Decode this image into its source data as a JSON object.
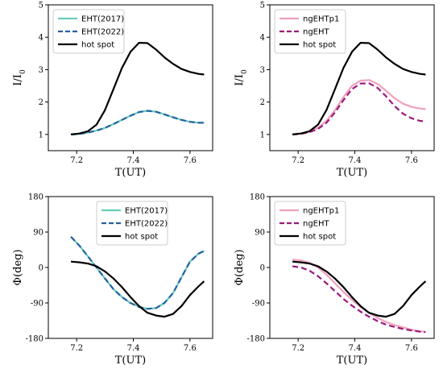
{
  "chart_data": [
    {
      "type": "line",
      "panel": "top-left",
      "xlabel": "T(UT)",
      "ylabel": "I/I",
      "ylabel_sub": "0",
      "xlim": [
        7.1,
        7.68
      ],
      "ylim": [
        0.5,
        5.0
      ],
      "xticks": [
        7.2,
        7.4,
        7.6
      ],
      "yticks": [
        1,
        2,
        3,
        4,
        5
      ],
      "legend_position": "top-left",
      "series": [
        {
          "name": "EHT(2017)",
          "color": "#66ccbb",
          "dash": "solid",
          "x": [
            7.18,
            7.21,
            7.24,
            7.27,
            7.3,
            7.33,
            7.36,
            7.39,
            7.42,
            7.45,
            7.48,
            7.51,
            7.54,
            7.57,
            7.6,
            7.63,
            7.65
          ],
          "y": [
            1.0,
            1.02,
            1.06,
            1.12,
            1.2,
            1.32,
            1.45,
            1.58,
            1.69,
            1.73,
            1.7,
            1.62,
            1.53,
            1.45,
            1.39,
            1.36,
            1.36
          ]
        },
        {
          "name": "EHT(2022)",
          "color": "#2660a4",
          "dash": "dashed",
          "x": [
            7.18,
            7.21,
            7.24,
            7.27,
            7.3,
            7.33,
            7.36,
            7.39,
            7.42,
            7.45,
            7.48,
            7.51,
            7.54,
            7.57,
            7.6,
            7.63,
            7.65
          ],
          "y": [
            1.0,
            1.02,
            1.06,
            1.12,
            1.2,
            1.32,
            1.45,
            1.58,
            1.69,
            1.73,
            1.7,
            1.62,
            1.53,
            1.45,
            1.39,
            1.36,
            1.36
          ]
        },
        {
          "name": "hot spot",
          "color": "#000000",
          "dash": "solid",
          "x": [
            7.18,
            7.21,
            7.24,
            7.27,
            7.3,
            7.33,
            7.36,
            7.39,
            7.42,
            7.45,
            7.48,
            7.51,
            7.54,
            7.57,
            7.6,
            7.63,
            7.65
          ],
          "y": [
            1.0,
            1.03,
            1.1,
            1.3,
            1.75,
            2.4,
            3.05,
            3.55,
            3.83,
            3.82,
            3.62,
            3.38,
            3.18,
            3.02,
            2.93,
            2.87,
            2.85
          ]
        }
      ]
    },
    {
      "type": "line",
      "panel": "top-right",
      "xlabel": "T(UT)",
      "ylabel": "I/I",
      "ylabel_sub": "0",
      "xlim": [
        7.1,
        7.68
      ],
      "ylim": [
        0.5,
        5.0
      ],
      "xticks": [
        7.2,
        7.4,
        7.6
      ],
      "yticks": [
        1,
        2,
        3,
        4,
        5
      ],
      "legend_position": "top-left",
      "series": [
        {
          "name": "ngEHTp1",
          "color": "#f0a0bd",
          "dash": "solid",
          "x": [
            7.18,
            7.21,
            7.24,
            7.27,
            7.3,
            7.33,
            7.36,
            7.39,
            7.42,
            7.45,
            7.48,
            7.51,
            7.54,
            7.57,
            7.6,
            7.63,
            7.65
          ],
          "y": [
            1.0,
            1.03,
            1.08,
            1.2,
            1.42,
            1.75,
            2.15,
            2.5,
            2.66,
            2.68,
            2.56,
            2.35,
            2.12,
            1.95,
            1.85,
            1.8,
            1.78
          ]
        },
        {
          "name": "ngEHT",
          "color": "#9b1a7a",
          "dash": "dashed",
          "x": [
            7.18,
            7.21,
            7.24,
            7.27,
            7.3,
            7.33,
            7.36,
            7.39,
            7.42,
            7.45,
            7.48,
            7.51,
            7.54,
            7.57,
            7.6,
            7.63,
            7.65
          ],
          "y": [
            1.0,
            1.02,
            1.07,
            1.17,
            1.36,
            1.68,
            2.06,
            2.4,
            2.57,
            2.58,
            2.44,
            2.18,
            1.88,
            1.64,
            1.5,
            1.42,
            1.4
          ]
        },
        {
          "name": "hot spot",
          "color": "#000000",
          "dash": "solid",
          "x": [
            7.18,
            7.21,
            7.24,
            7.27,
            7.3,
            7.33,
            7.36,
            7.39,
            7.42,
            7.45,
            7.48,
            7.51,
            7.54,
            7.57,
            7.6,
            7.63,
            7.65
          ],
          "y": [
            1.0,
            1.03,
            1.1,
            1.3,
            1.75,
            2.4,
            3.05,
            3.55,
            3.83,
            3.82,
            3.62,
            3.38,
            3.18,
            3.02,
            2.93,
            2.87,
            2.85
          ]
        }
      ]
    },
    {
      "type": "line",
      "panel": "bottom-left",
      "xlabel": "T(UT)",
      "ylabel": "Φ(deg)",
      "xlim": [
        7.1,
        7.68
      ],
      "ylim": [
        -180,
        180
      ],
      "xticks": [
        7.2,
        7.4,
        7.6
      ],
      "yticks": [
        -180,
        -90,
        0,
        90,
        180
      ],
      "legend_position": "top-center",
      "series": [
        {
          "name": "EHT(2017)",
          "color": "#66ccbb",
          "dash": "solid",
          "x": [
            7.18,
            7.21,
            7.24,
            7.27,
            7.3,
            7.33,
            7.36,
            7.39,
            7.42,
            7.45,
            7.48,
            7.51,
            7.54,
            7.57,
            7.6,
            7.63,
            7.65
          ],
          "y": [
            78,
            55,
            28,
            0,
            -28,
            -55,
            -75,
            -90,
            -100,
            -105,
            -103,
            -90,
            -65,
            -25,
            15,
            35,
            42
          ]
        },
        {
          "name": "EHT(2022)",
          "color": "#2660a4",
          "dash": "dashed",
          "x": [
            7.18,
            7.21,
            7.24,
            7.27,
            7.3,
            7.33,
            7.36,
            7.39,
            7.42,
            7.45,
            7.48,
            7.51,
            7.54,
            7.57,
            7.6,
            7.63,
            7.65
          ],
          "y": [
            78,
            55,
            28,
            0,
            -28,
            -55,
            -75,
            -90,
            -100,
            -105,
            -103,
            -90,
            -65,
            -25,
            15,
            35,
            42
          ]
        },
        {
          "name": "hot spot",
          "color": "#000000",
          "dash": "solid",
          "x": [
            7.18,
            7.21,
            7.24,
            7.27,
            7.3,
            7.33,
            7.36,
            7.39,
            7.42,
            7.45,
            7.48,
            7.51,
            7.54,
            7.57,
            7.6,
            7.63,
            7.65
          ],
          "y": [
            15,
            13,
            10,
            3,
            -10,
            -28,
            -50,
            -75,
            -98,
            -115,
            -122,
            -125,
            -118,
            -98,
            -70,
            -48,
            -35
          ]
        }
      ]
    },
    {
      "type": "line",
      "panel": "bottom-right",
      "xlabel": "T(UT)",
      "ylabel": "Φ(deg)",
      "xlim": [
        7.1,
        7.68
      ],
      "ylim": [
        -180,
        180
      ],
      "xticks": [
        7.2,
        7.4,
        7.6
      ],
      "yticks": [
        -180,
        -90,
        0,
        90,
        180
      ],
      "legend_position": "top-left",
      "series": [
        {
          "name": "ngEHTp1",
          "color": "#f0a0bd",
          "dash": "solid",
          "x": [
            7.18,
            7.21,
            7.24,
            7.27,
            7.3,
            7.33,
            7.36,
            7.39,
            7.42,
            7.45,
            7.48,
            7.51,
            7.54,
            7.57,
            7.6,
            7.63,
            7.65
          ],
          "y": [
            20,
            18,
            12,
            0,
            -18,
            -40,
            -62,
            -82,
            -100,
            -115,
            -128,
            -138,
            -146,
            -152,
            -158,
            -162,
            -163
          ]
        },
        {
          "name": "ngEHT",
          "color": "#9b1a7a",
          "dash": "dashed",
          "x": [
            7.18,
            7.21,
            7.24,
            7.27,
            7.3,
            7.33,
            7.36,
            7.39,
            7.42,
            7.45,
            7.48,
            7.51,
            7.54,
            7.57,
            7.6,
            7.63,
            7.65
          ],
          "y": [
            3,
            0,
            -8,
            -22,
            -40,
            -60,
            -80,
            -97,
            -112,
            -125,
            -136,
            -145,
            -151,
            -156,
            -160,
            -163,
            -164
          ]
        },
        {
          "name": "hot spot",
          "color": "#000000",
          "dash": "solid",
          "x": [
            7.18,
            7.21,
            7.24,
            7.27,
            7.3,
            7.33,
            7.36,
            7.39,
            7.42,
            7.45,
            7.48,
            7.51,
            7.54,
            7.57,
            7.6,
            7.63,
            7.65
          ],
          "y": [
            15,
            13,
            10,
            3,
            -10,
            -28,
            -50,
            -75,
            -98,
            -115,
            -122,
            -125,
            -118,
            -98,
            -70,
            -48,
            -35
          ]
        }
      ]
    }
  ]
}
